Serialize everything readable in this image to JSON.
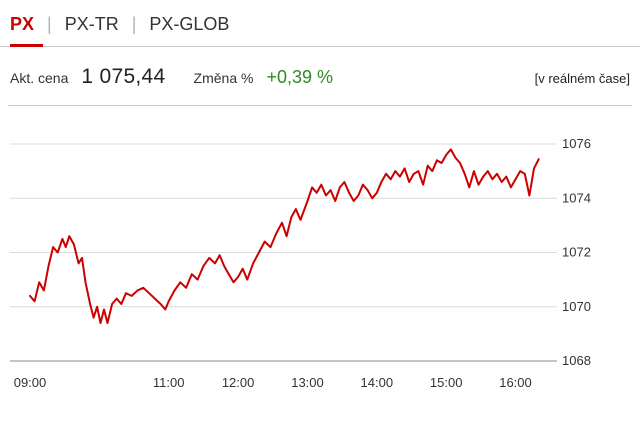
{
  "tabs": [
    {
      "label": "PX",
      "active": true
    },
    {
      "label": "PX-TR",
      "active": false
    },
    {
      "label": "PX-GLOB",
      "active": false
    }
  ],
  "tabs_separator": "|",
  "info": {
    "price_label": "Akt. cena",
    "price_value": "1 075,44",
    "change_label": "Změna %",
    "change_value": "+0,39 %",
    "realtime_note": "[v reálném čase]"
  },
  "colors": {
    "accent_red": "#cc0000",
    "positive_green": "#2e8b22",
    "grid_light": "#dcdcdc",
    "grid_axis": "#8a8a8a",
    "tick_text": "#333333"
  },
  "chart_data": {
    "type": "line",
    "title": "",
    "xlabel": "",
    "ylabel": "",
    "grid": true,
    "legend": false,
    "ylim": [
      1068,
      1076
    ],
    "y_ticks": [
      1068,
      1070,
      1072,
      1074,
      1076
    ],
    "x_domain_minutes": [
      0,
      455
    ],
    "x_ticks": [
      {
        "label": "09:00",
        "minute": 0
      },
      {
        "label": "11:00",
        "minute": 120
      },
      {
        "label": "12:00",
        "minute": 180
      },
      {
        "label": "13:00",
        "minute": 240
      },
      {
        "label": "14:00",
        "minute": 300
      },
      {
        "label": "15:00",
        "minute": 360
      },
      {
        "label": "16:00",
        "minute": 420
      }
    ],
    "series": [
      {
        "name": "PX",
        "color": "#cc0000",
        "points": [
          [
            0,
            1070.4
          ],
          [
            4,
            1070.2
          ],
          [
            8,
            1070.9
          ],
          [
            12,
            1070.6
          ],
          [
            16,
            1071.5
          ],
          [
            20,
            1072.2
          ],
          [
            24,
            1072.0
          ],
          [
            28,
            1072.5
          ],
          [
            31,
            1072.2
          ],
          [
            34,
            1072.6
          ],
          [
            38,
            1072.3
          ],
          [
            42,
            1071.6
          ],
          [
            45,
            1071.8
          ],
          [
            48,
            1070.9
          ],
          [
            52,
            1070.1
          ],
          [
            55,
            1069.6
          ],
          [
            58,
            1070.0
          ],
          [
            61,
            1069.4
          ],
          [
            64,
            1069.9
          ],
          [
            67,
            1069.4
          ],
          [
            71,
            1070.1
          ],
          [
            75,
            1070.3
          ],
          [
            79,
            1070.1
          ],
          [
            83,
            1070.5
          ],
          [
            88,
            1070.4
          ],
          [
            93,
            1070.6
          ],
          [
            98,
            1070.7
          ],
          [
            103,
            1070.5
          ],
          [
            108,
            1070.3
          ],
          [
            113,
            1070.1
          ],
          [
            117,
            1069.9
          ],
          [
            120,
            1070.2
          ],
          [
            125,
            1070.6
          ],
          [
            130,
            1070.9
          ],
          [
            135,
            1070.7
          ],
          [
            140,
            1071.2
          ],
          [
            145,
            1071.0
          ],
          [
            150,
            1071.5
          ],
          [
            155,
            1071.8
          ],
          [
            160,
            1071.6
          ],
          [
            164,
            1071.9
          ],
          [
            168,
            1071.5
          ],
          [
            172,
            1071.2
          ],
          [
            176,
            1070.9
          ],
          [
            180,
            1071.1
          ],
          [
            184,
            1071.4
          ],
          [
            188,
            1071.0
          ],
          [
            193,
            1071.6
          ],
          [
            198,
            1072.0
          ],
          [
            203,
            1072.4
          ],
          [
            208,
            1072.2
          ],
          [
            213,
            1072.7
          ],
          [
            218,
            1073.1
          ],
          [
            222,
            1072.6
          ],
          [
            226,
            1073.3
          ],
          [
            230,
            1073.6
          ],
          [
            234,
            1073.2
          ],
          [
            240,
            1073.9
          ],
          [
            244,
            1074.4
          ],
          [
            248,
            1074.2
          ],
          [
            252,
            1074.5
          ],
          [
            256,
            1074.1
          ],
          [
            260,
            1074.3
          ],
          [
            264,
            1073.9
          ],
          [
            268,
            1074.4
          ],
          [
            272,
            1074.6
          ],
          [
            276,
            1074.2
          ],
          [
            280,
            1073.9
          ],
          [
            284,
            1074.1
          ],
          [
            288,
            1074.5
          ],
          [
            292,
            1074.3
          ],
          [
            296,
            1074.0
          ],
          [
            300,
            1074.2
          ],
          [
            304,
            1074.6
          ],
          [
            308,
            1074.9
          ],
          [
            312,
            1074.7
          ],
          [
            316,
            1075.0
          ],
          [
            320,
            1074.8
          ],
          [
            324,
            1075.1
          ],
          [
            328,
            1074.6
          ],
          [
            332,
            1074.9
          ],
          [
            336,
            1075.0
          ],
          [
            340,
            1074.5
          ],
          [
            344,
            1075.2
          ],
          [
            348,
            1075.0
          ],
          [
            352,
            1075.4
          ],
          [
            356,
            1075.3
          ],
          [
            360,
            1075.6
          ],
          [
            364,
            1075.8
          ],
          [
            368,
            1075.5
          ],
          [
            372,
            1075.3
          ],
          [
            376,
            1074.9
          ],
          [
            380,
            1074.4
          ],
          [
            384,
            1075.0
          ],
          [
            388,
            1074.5
          ],
          [
            392,
            1074.8
          ],
          [
            396,
            1075.0
          ],
          [
            400,
            1074.7
          ],
          [
            404,
            1074.9
          ],
          [
            408,
            1074.6
          ],
          [
            412,
            1074.8
          ],
          [
            416,
            1074.4
          ],
          [
            420,
            1074.7
          ],
          [
            424,
            1075.0
          ],
          [
            428,
            1074.9
          ],
          [
            432,
            1074.1
          ],
          [
            436,
            1075.1
          ],
          [
            440,
            1075.44
          ]
        ]
      }
    ]
  }
}
